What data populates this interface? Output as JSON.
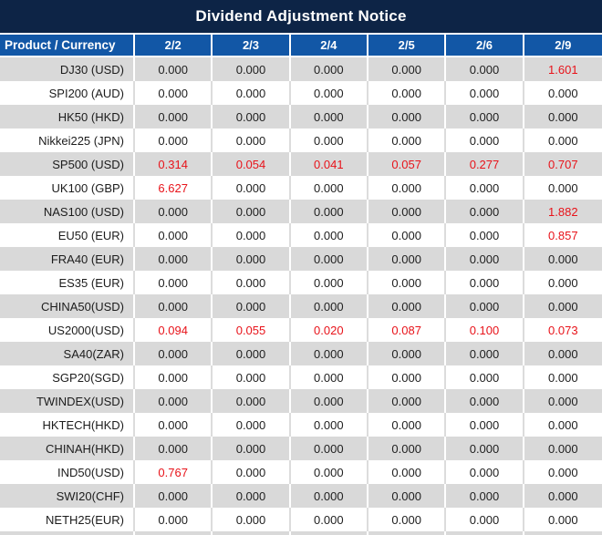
{
  "title": "Dividend Adjustment Notice",
  "table": {
    "product_header": "Product / Currency",
    "date_headers": [
      "2/2",
      "2/3",
      "2/4",
      "2/5",
      "2/6",
      "2/9"
    ],
    "zero_value": "0.000",
    "rows": [
      {
        "product": "DJ30 (USD)",
        "values": [
          "0.000",
          "0.000",
          "0.000",
          "0.000",
          "0.000",
          "1.601"
        ]
      },
      {
        "product": "SPI200 (AUD)",
        "values": [
          "0.000",
          "0.000",
          "0.000",
          "0.000",
          "0.000",
          "0.000"
        ]
      },
      {
        "product": "HK50 (HKD)",
        "values": [
          "0.000",
          "0.000",
          "0.000",
          "0.000",
          "0.000",
          "0.000"
        ]
      },
      {
        "product": "Nikkei225 (JPN)",
        "values": [
          "0.000",
          "0.000",
          "0.000",
          "0.000",
          "0.000",
          "0.000"
        ]
      },
      {
        "product": "SP500 (USD)",
        "values": [
          "0.314",
          "0.054",
          "0.041",
          "0.057",
          "0.277",
          "0.707"
        ]
      },
      {
        "product": "UK100 (GBP)",
        "values": [
          "6.627",
          "0.000",
          "0.000",
          "0.000",
          "0.000",
          "0.000"
        ]
      },
      {
        "product": "NAS100 (USD)",
        "values": [
          "0.000",
          "0.000",
          "0.000",
          "0.000",
          "0.000",
          "1.882"
        ]
      },
      {
        "product": "EU50 (EUR)",
        "values": [
          "0.000",
          "0.000",
          "0.000",
          "0.000",
          "0.000",
          "0.857"
        ]
      },
      {
        "product": "FRA40 (EUR)",
        "values": [
          "0.000",
          "0.000",
          "0.000",
          "0.000",
          "0.000",
          "0.000"
        ]
      },
      {
        "product": "ES35 (EUR)",
        "values": [
          "0.000",
          "0.000",
          "0.000",
          "0.000",
          "0.000",
          "0.000"
        ]
      },
      {
        "product": "CHINA50(USD)",
        "values": [
          "0.000",
          "0.000",
          "0.000",
          "0.000",
          "0.000",
          "0.000"
        ]
      },
      {
        "product": "US2000(USD)",
        "values": [
          "0.094",
          "0.055",
          "0.020",
          "0.087",
          "0.100",
          "0.073"
        ]
      },
      {
        "product": "SA40(ZAR)",
        "values": [
          "0.000",
          "0.000",
          "0.000",
          "0.000",
          "0.000",
          "0.000"
        ]
      },
      {
        "product": "SGP20(SGD)",
        "values": [
          "0.000",
          "0.000",
          "0.000",
          "0.000",
          "0.000",
          "0.000"
        ]
      },
      {
        "product": "TWINDEX(USD)",
        "values": [
          "0.000",
          "0.000",
          "0.000",
          "0.000",
          "0.000",
          "0.000"
        ]
      },
      {
        "product": "HKTECH(HKD)",
        "values": [
          "0.000",
          "0.000",
          "0.000",
          "0.000",
          "0.000",
          "0.000"
        ]
      },
      {
        "product": "CHINAH(HKD)",
        "values": [
          "0.000",
          "0.000",
          "0.000",
          "0.000",
          "0.000",
          "0.000"
        ]
      },
      {
        "product": "IND50(USD)",
        "values": [
          "0.767",
          "0.000",
          "0.000",
          "0.000",
          "0.000",
          "0.000"
        ]
      },
      {
        "product": "SWI20(CHF)",
        "values": [
          "0.000",
          "0.000",
          "0.000",
          "0.000",
          "0.000",
          "0.000"
        ]
      },
      {
        "product": "NETH25(EUR)",
        "values": [
          "0.000",
          "0.000",
          "0.000",
          "0.000",
          "0.000",
          "0.000"
        ]
      }
    ]
  },
  "colors": {
    "title_bg": "#0d2446",
    "header_bg": "#1257a6",
    "header_text": "#ffffff",
    "row_bg": "#ffffff",
    "row_alt_bg": "#d9d9d9",
    "separator_on_white": "#dcdcdc",
    "separator_on_gray": "#ffffff",
    "value_zero": "#212121",
    "value_nonzero_red": "#e8131a"
  }
}
